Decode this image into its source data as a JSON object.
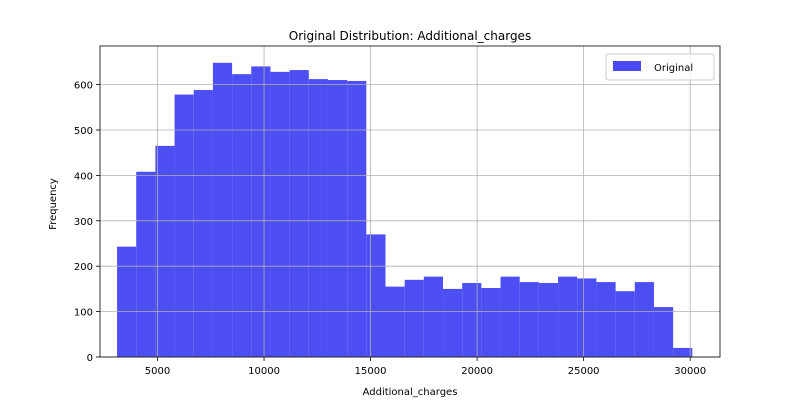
{
  "chart_data": {
    "type": "bar",
    "title": "Original Distribution: Additional_charges",
    "xlabel": "Additional_charges",
    "ylabel": "Frequency",
    "xlim": [
      2300,
      31400
    ],
    "ylim": [
      0,
      685
    ],
    "xticks": [
      5000,
      10000,
      15000,
      20000,
      25000,
      30000
    ],
    "yticks": [
      0,
      100,
      200,
      300,
      400,
      500,
      600
    ],
    "grid": true,
    "legend": {
      "position": "top-right",
      "entries": [
        "Original"
      ]
    },
    "series": [
      {
        "name": "Original",
        "color": "#4a4af5",
        "bins": [
          {
            "x0": 3100,
            "x1": 4000,
            "value": 243
          },
          {
            "x0": 4000,
            "x1": 4900,
            "value": 408
          },
          {
            "x0": 4900,
            "x1": 5800,
            "value": 465
          },
          {
            "x0": 5800,
            "x1": 6700,
            "value": 578
          },
          {
            "x0": 6700,
            "x1": 7600,
            "value": 588
          },
          {
            "x0": 7600,
            "x1": 8500,
            "value": 648
          },
          {
            "x0": 8500,
            "x1": 9400,
            "value": 623
          },
          {
            "x0": 9400,
            "x1": 10300,
            "value": 640
          },
          {
            "x0": 10300,
            "x1": 11200,
            "value": 628
          },
          {
            "x0": 11200,
            "x1": 12100,
            "value": 632
          },
          {
            "x0": 12100,
            "x1": 13000,
            "value": 612
          },
          {
            "x0": 13000,
            "x1": 13900,
            "value": 610
          },
          {
            "x0": 13900,
            "x1": 14800,
            "value": 608
          },
          {
            "x0": 14800,
            "x1": 15700,
            "value": 270
          },
          {
            "x0": 15700,
            "x1": 16600,
            "value": 155
          },
          {
            "x0": 16600,
            "x1": 17500,
            "value": 170
          },
          {
            "x0": 17500,
            "x1": 18400,
            "value": 177
          },
          {
            "x0": 18400,
            "x1": 19300,
            "value": 150
          },
          {
            "x0": 19300,
            "x1": 20200,
            "value": 163
          },
          {
            "x0": 20200,
            "x1": 21100,
            "value": 152
          },
          {
            "x0": 21100,
            "x1": 22000,
            "value": 177
          },
          {
            "x0": 22000,
            "x1": 22900,
            "value": 165
          },
          {
            "x0": 22900,
            "x1": 23800,
            "value": 163
          },
          {
            "x0": 23800,
            "x1": 24700,
            "value": 177
          },
          {
            "x0": 24700,
            "x1": 25600,
            "value": 173
          },
          {
            "x0": 25600,
            "x1": 26500,
            "value": 165
          },
          {
            "x0": 26500,
            "x1": 27400,
            "value": 145
          },
          {
            "x0": 27400,
            "x1": 28300,
            "value": 165
          },
          {
            "x0": 28300,
            "x1": 29200,
            "value": 110
          },
          {
            "x0": 29200,
            "x1": 30100,
            "value": 20
          }
        ]
      }
    ]
  }
}
